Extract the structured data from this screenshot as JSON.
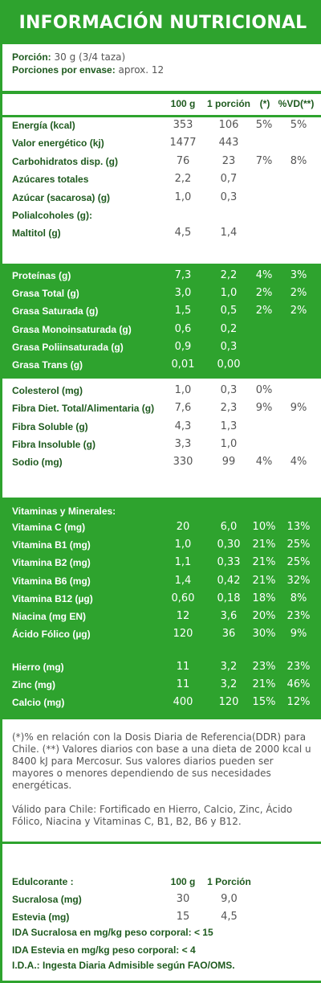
{
  "title": "INFORMACIÓN NUTRICIONAL",
  "portion": {
    "label1": "Porción:",
    "value1": "30 g (3/4 taza)",
    "label2": "Porciones por envase:",
    "value2": "aprox. 12"
  },
  "headers": [
    "100 g",
    "1 porción",
    "(*)",
    "%VD(**)"
  ],
  "group1": [
    {
      "name": "Energía (kcal)",
      "v": [
        "353",
        "106",
        "5%",
        "5%"
      ]
    },
    {
      "name": "Valor energético (kj)",
      "v": [
        "1477",
        "443",
        "",
        ""
      ]
    },
    {
      "name": "Carbohidratos disp. (g)",
      "v": [
        "76",
        "23",
        "7%",
        "8%"
      ]
    },
    {
      "name": "Azúcares totales",
      "v": [
        "2,2",
        "0,7",
        "",
        ""
      ]
    },
    {
      "name": "Azúcar (sacarosa) (g)",
      "v": [
        "1,0",
        "0,3",
        "",
        ""
      ]
    },
    {
      "name": "Polialcoholes (g):",
      "v": [
        "",
        "",
        "",
        ""
      ]
    },
    {
      "name": "Maltitol (g)",
      "v": [
        "4,5",
        "1,4",
        "",
        ""
      ]
    }
  ],
  "group2": [
    {
      "name": "Proteínas (g)",
      "v": [
        "7,3",
        "2,2",
        "4%",
        "3%"
      ]
    },
    {
      "name": "Grasa Total (g)",
      "v": [
        "3,0",
        "1,0",
        "2%",
        "2%"
      ]
    },
    {
      "name": "Grasa Saturada (g)",
      "v": [
        "1,5",
        "0,5",
        "2%",
        "2%"
      ]
    },
    {
      "name": "Grasa Monoinsaturada (g)",
      "v": [
        "0,6",
        "0,2",
        "",
        ""
      ]
    },
    {
      "name": "Grasa Poliinsaturada (g)",
      "v": [
        "0,9",
        "0,3",
        "",
        ""
      ]
    },
    {
      "name": "Grasa Trans (g)",
      "v": [
        "0,01",
        "0,00",
        "",
        ""
      ]
    }
  ],
  "group3": [
    {
      "name": "Colesterol (mg)",
      "v": [
        "1,0",
        "0,3",
        "0%",
        ""
      ]
    },
    {
      "name": "Fibra Diet. Total/Alimentaria (g)",
      "v": [
        "7,6",
        "2,3",
        "9%",
        "9%"
      ]
    },
    {
      "name": "Fibra Soluble (g)",
      "v": [
        "4,3",
        "1,3",
        "",
        ""
      ]
    },
    {
      "name": "Fibra Insoluble (g)",
      "v": [
        "3,3",
        "1,0",
        "",
        ""
      ]
    },
    {
      "name": "Sodio (mg)",
      "v": [
        "330",
        "99",
        "4%",
        "4%"
      ]
    }
  ],
  "group4_heading": "Vitaminas y Minerales:",
  "group4": [
    {
      "name": "Vitamina C (mg)",
      "v": [
        "20",
        "6,0",
        "10%",
        "13%"
      ]
    },
    {
      "name": "Vitamina B1 (mg)",
      "v": [
        "1,0",
        "0,30",
        "21%",
        "25%"
      ]
    },
    {
      "name": "Vitamina B2 (mg)",
      "v": [
        "1,1",
        "0,33",
        "21%",
        "25%"
      ]
    },
    {
      "name": "Vitamina B6 (mg)",
      "v": [
        "1,4",
        "0,42",
        "21%",
        "32%"
      ]
    },
    {
      "name": "Vitamina B12 (µg)",
      "v": [
        "0,60",
        "0,18",
        "18%",
        "8%"
      ]
    },
    {
      "name": "Niacina (mg EN)",
      "v": [
        "12",
        "3,6",
        "20%",
        "23%"
      ]
    },
    {
      "name": "Ácido Fólico (µg)",
      "v": [
        "120",
        "36",
        "30%",
        "9%"
      ]
    }
  ],
  "group4b": [
    {
      "name": "Hierro (mg)",
      "v": [
        "11",
        "3,2",
        "23%",
        "23%"
      ]
    },
    {
      "name": "Zinc (mg)",
      "v": [
        "11",
        "3,2",
        "21%",
        "46%"
      ]
    },
    {
      "name": "Calcio (mg)",
      "v": [
        "400",
        "120",
        "15%",
        "12%"
      ]
    }
  ],
  "note1": "(*)% en relación con la Dosis Diaria de Referencia(DDR) para Chile. (**) Valores diarios con base a una dieta de 2000 kcal u 8400 kJ para Mercosur. Sus valores diarios pueden ser mayores o menores dependiendo de sus necesidades energéticas.",
  "note2": "Válido para Chile: Fortificado  en Hierro, Calcio, Zinc, Ácido Fólico, Niacina y Vitaminas C, B1, B2, B6 y B12.",
  "sweet": {
    "heading": "Edulcorante :",
    "h1": "100 g",
    "h2": "1 Porción",
    "rows": [
      {
        "name": "Sucralosa (mg)",
        "v": [
          "30",
          "9,0"
        ]
      },
      {
        "name": "Estevia (mg)",
        "v": [
          "15",
          "4,5"
        ]
      }
    ]
  },
  "ida": [
    "IDA Sucralosa en mg/kg peso corporal: < 15",
    "IDA Estevia en mg/kg peso corporal: < 4",
    "I.D.A.: Ingesta Diaria Admisible según FAO/OMS."
  ]
}
